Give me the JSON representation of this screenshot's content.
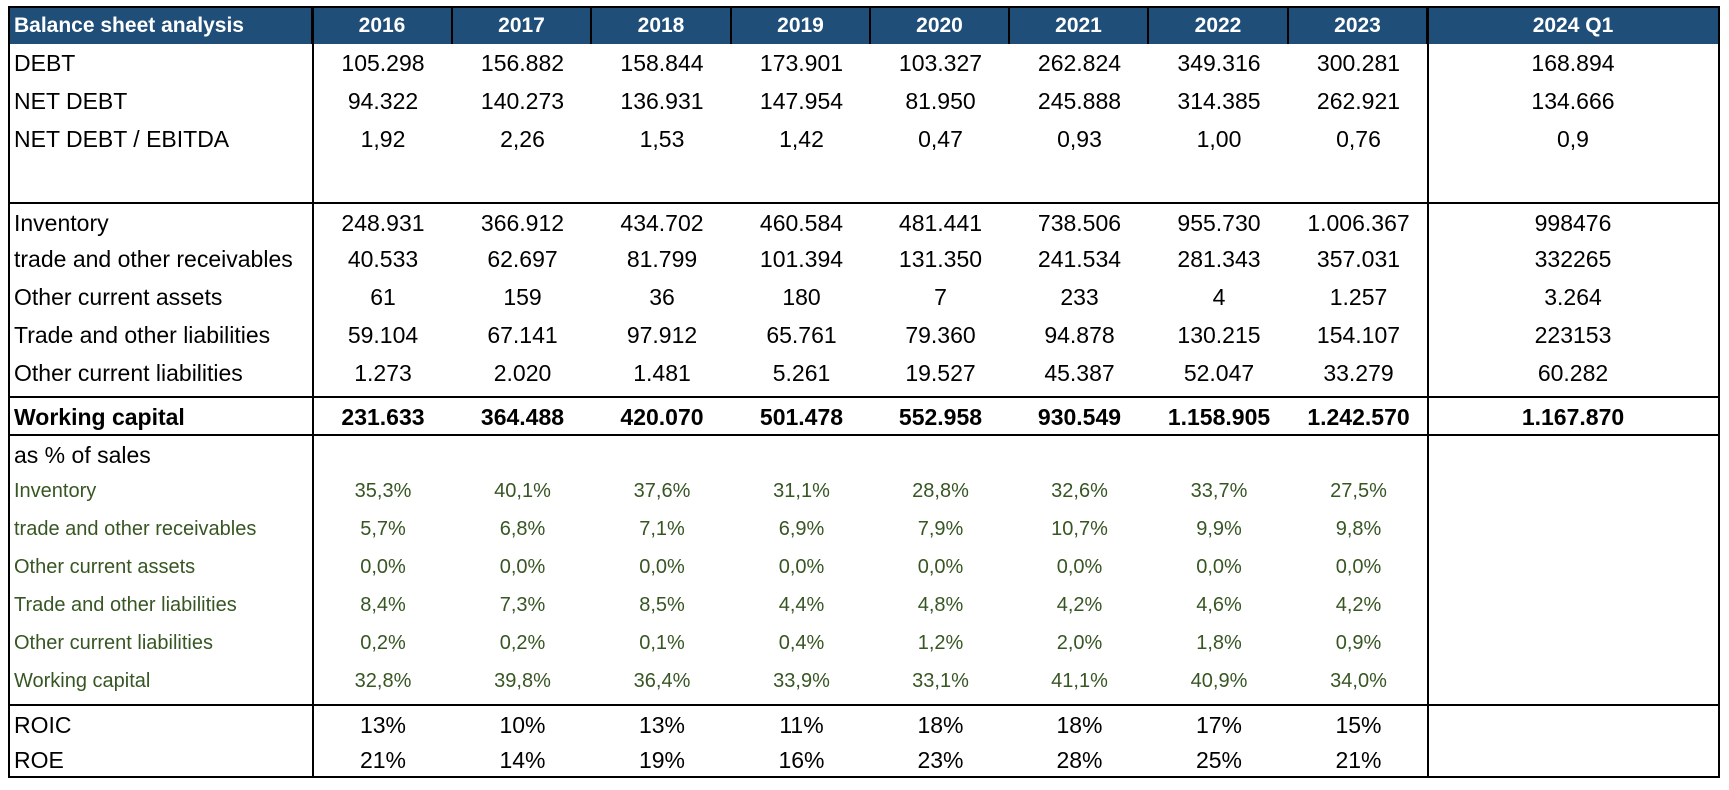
{
  "table": {
    "title": "Balance sheet  analysis",
    "columns": [
      "2016",
      "2017",
      "2018",
      "2019",
      "2020",
      "2021",
      "2022",
      "2023",
      "2024 Q1"
    ],
    "rows": [
      {
        "label": "DEBT",
        "values": [
          "105.298",
          "156.882",
          "158.844",
          "173.901",
          "103.327",
          "262.824",
          "349.316",
          "300.281",
          "168.894"
        ]
      },
      {
        "label": "NET DEBT",
        "values": [
          "94.322",
          "140.273",
          "136.931",
          "147.954",
          "81.950",
          "245.888",
          "314.385",
          "262.921",
          "134.666"
        ]
      },
      {
        "label": "NET DEBT / EBITDA",
        "values": [
          "1,92",
          "2,26",
          "1,53",
          "1,42",
          "0,47",
          "0,93",
          "1,00",
          "0,76",
          "0,9"
        ]
      },
      {
        "label": "Inventory",
        "values": [
          "248.931",
          "366.912",
          "434.702",
          "460.584",
          "481.441",
          "738.506",
          "955.730",
          "1.006.367",
          "998476"
        ]
      },
      {
        "label": "trade and other receivables",
        "values": [
          "40.533",
          "62.697",
          "81.799",
          "101.394",
          "131.350",
          "241.534",
          "281.343",
          "357.031",
          "332265"
        ]
      },
      {
        "label": "Other current assets",
        "values": [
          "61",
          "159",
          "36",
          "180",
          "7",
          "233",
          "4",
          "1.257",
          "3.264"
        ]
      },
      {
        "label": "Trade and other liabilities",
        "values": [
          "59.104",
          "67.141",
          "97.912",
          "65.761",
          "79.360",
          "94.878",
          "130.215",
          "154.107",
          "223153"
        ]
      },
      {
        "label": "Other current liabilities",
        "values": [
          "1.273",
          "2.020",
          "1.481",
          "5.261",
          "19.527",
          "45.387",
          "52.047",
          "33.279",
          "60.282"
        ]
      },
      {
        "label": "Working capital",
        "values": [
          "231.633",
          "364.488",
          "420.070",
          "501.478",
          "552.958",
          "930.549",
          "1.158.905",
          "1.242.570",
          "1.167.870"
        ]
      },
      {
        "label": "as % of sales",
        "values": [
          "",
          "",
          "",
          "",
          "",
          "",
          "",
          "",
          ""
        ]
      },
      {
        "label": "Inventory",
        "values": [
          "35,3%",
          "40,1%",
          "37,6%",
          "31,1%",
          "28,8%",
          "32,6%",
          "33,7%",
          "27,5%",
          ""
        ]
      },
      {
        "label": "trade and other receivables",
        "values": [
          "5,7%",
          "6,8%",
          "7,1%",
          "6,9%",
          "7,9%",
          "10,7%",
          "9,9%",
          "9,8%",
          ""
        ]
      },
      {
        "label": "Other current assets",
        "values": [
          "0,0%",
          "0,0%",
          "0,0%",
          "0,0%",
          "0,0%",
          "0,0%",
          "0,0%",
          "0,0%",
          ""
        ]
      },
      {
        "label": "Trade and other liabilities",
        "values": [
          "8,4%",
          "7,3%",
          "8,5%",
          "4,4%",
          "4,8%",
          "4,2%",
          "4,6%",
          "4,2%",
          ""
        ]
      },
      {
        "label": "Other current liabilities",
        "values": [
          "0,2%",
          "0,2%",
          "0,1%",
          "0,4%",
          "1,2%",
          "2,0%",
          "1,8%",
          "0,9%",
          ""
        ]
      },
      {
        "label": "Working capital",
        "values": [
          "32,8%",
          "39,8%",
          "36,4%",
          "33,9%",
          "33,1%",
          "41,1%",
          "40,9%",
          "34,0%",
          ""
        ]
      },
      {
        "label": "ROIC",
        "values": [
          "13%",
          "10%",
          "13%",
          "11%",
          "18%",
          "18%",
          "17%",
          "15%",
          ""
        ]
      },
      {
        "label": "ROE",
        "values": [
          "21%",
          "14%",
          "19%",
          "16%",
          "23%",
          "28%",
          "25%",
          "21%",
          ""
        ]
      }
    ]
  },
  "colors": {
    "header_bg": "#1f4e79",
    "header_text": "#ffffff",
    "pct_text": "#375623"
  }
}
